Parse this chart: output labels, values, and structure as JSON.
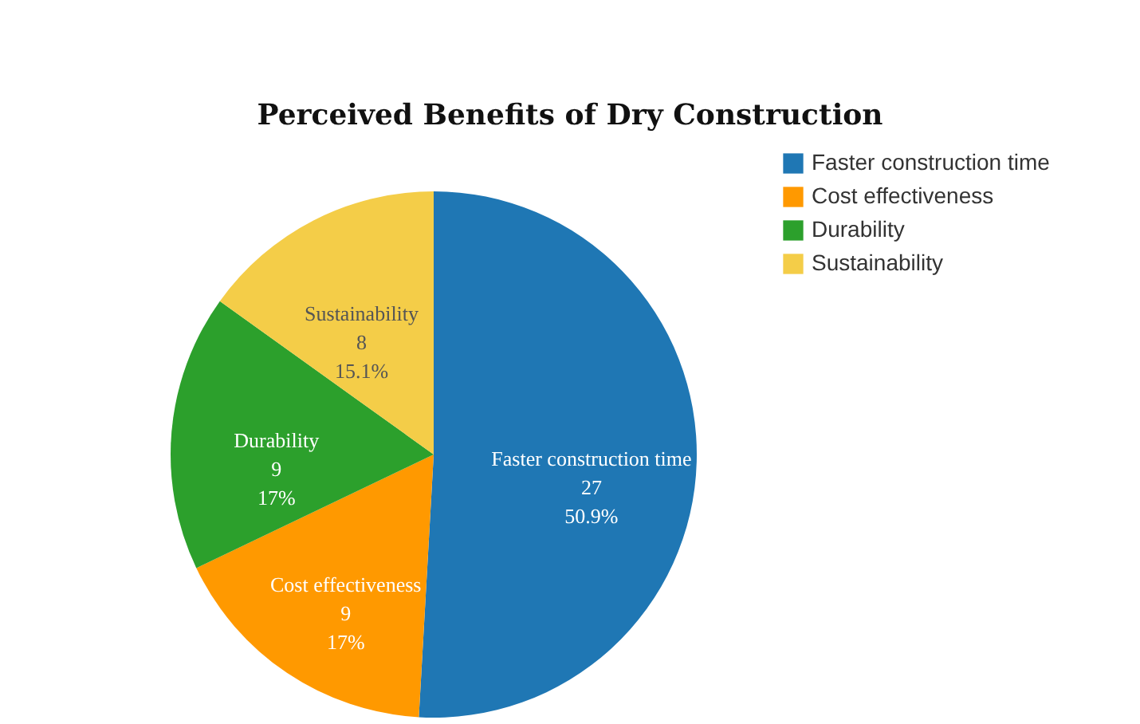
{
  "chart_data": {
    "type": "pie",
    "title": "Perceived Benefits of Dry Construction",
    "categories": [
      "Faster construction time",
      "Cost effectiveness",
      "Durability",
      "Sustainability"
    ],
    "values": [
      50.9,
      17,
      17,
      15.1
    ],
    "colors": [
      "#1f77b4",
      "#ff9900",
      "#2ca02c",
      "#f4cd48"
    ],
    "value_labels": [
      "27\n50.9%",
      "9\n17%",
      "9\n17%",
      "8\n15.1%"
    ],
    "legend": "top right"
  }
}
